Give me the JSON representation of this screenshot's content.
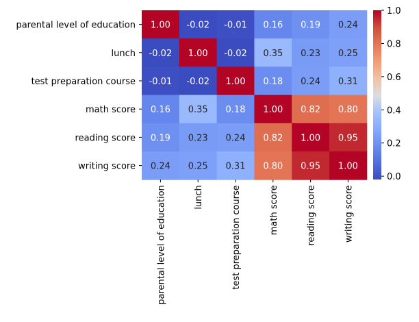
{
  "chart_data": {
    "type": "heatmap",
    "title": "",
    "xlabel": "",
    "ylabel": "",
    "rows": [
      "parental level of education",
      "lunch",
      "test preparation course",
      "math score",
      "reading score",
      "writing score"
    ],
    "columns": [
      "parental level of education",
      "lunch",
      "test preparation course",
      "math score",
      "reading score",
      "writing score"
    ],
    "values": [
      [
        1.0,
        -0.02,
        -0.01,
        0.16,
        0.19,
        0.24
      ],
      [
        -0.02,
        1.0,
        -0.02,
        0.35,
        0.23,
        0.25
      ],
      [
        -0.01,
        -0.02,
        1.0,
        0.18,
        0.24,
        0.31
      ],
      [
        0.16,
        0.35,
        0.18,
        1.0,
        0.82,
        0.8
      ],
      [
        0.19,
        0.23,
        0.24,
        0.82,
        1.0,
        0.95
      ],
      [
        0.24,
        0.25,
        0.31,
        0.8,
        0.95,
        1.0
      ]
    ],
    "annotations": [
      [
        "1.00",
        "-0.02",
        "-0.01",
        "0.16",
        "0.19",
        "0.24"
      ],
      [
        "-0.02",
        "1.00",
        "-0.02",
        "0.35",
        "0.23",
        "0.25"
      ],
      [
        "-0.01",
        "-0.02",
        "1.00",
        "0.18",
        "0.24",
        "0.31"
      ],
      [
        "0.16",
        "0.35",
        "0.18",
        "1.00",
        "0.82",
        "0.80"
      ],
      [
        "0.19",
        "0.23",
        "0.24",
        "0.82",
        "1.00",
        "0.95"
      ],
      [
        "0.24",
        "0.25",
        "0.31",
        "0.80",
        "0.95",
        "1.00"
      ]
    ],
    "colormap": "coolwarm",
    "vmin": -0.02,
    "vmax": 1.0,
    "colorbar": {
      "ticks": [
        0.0,
        0.2,
        0.4,
        0.6,
        0.8,
        1.0
      ],
      "tick_labels": [
        "0.0",
        "0.2",
        "0.4",
        "0.6",
        "0.8",
        "1.0"
      ]
    }
  }
}
